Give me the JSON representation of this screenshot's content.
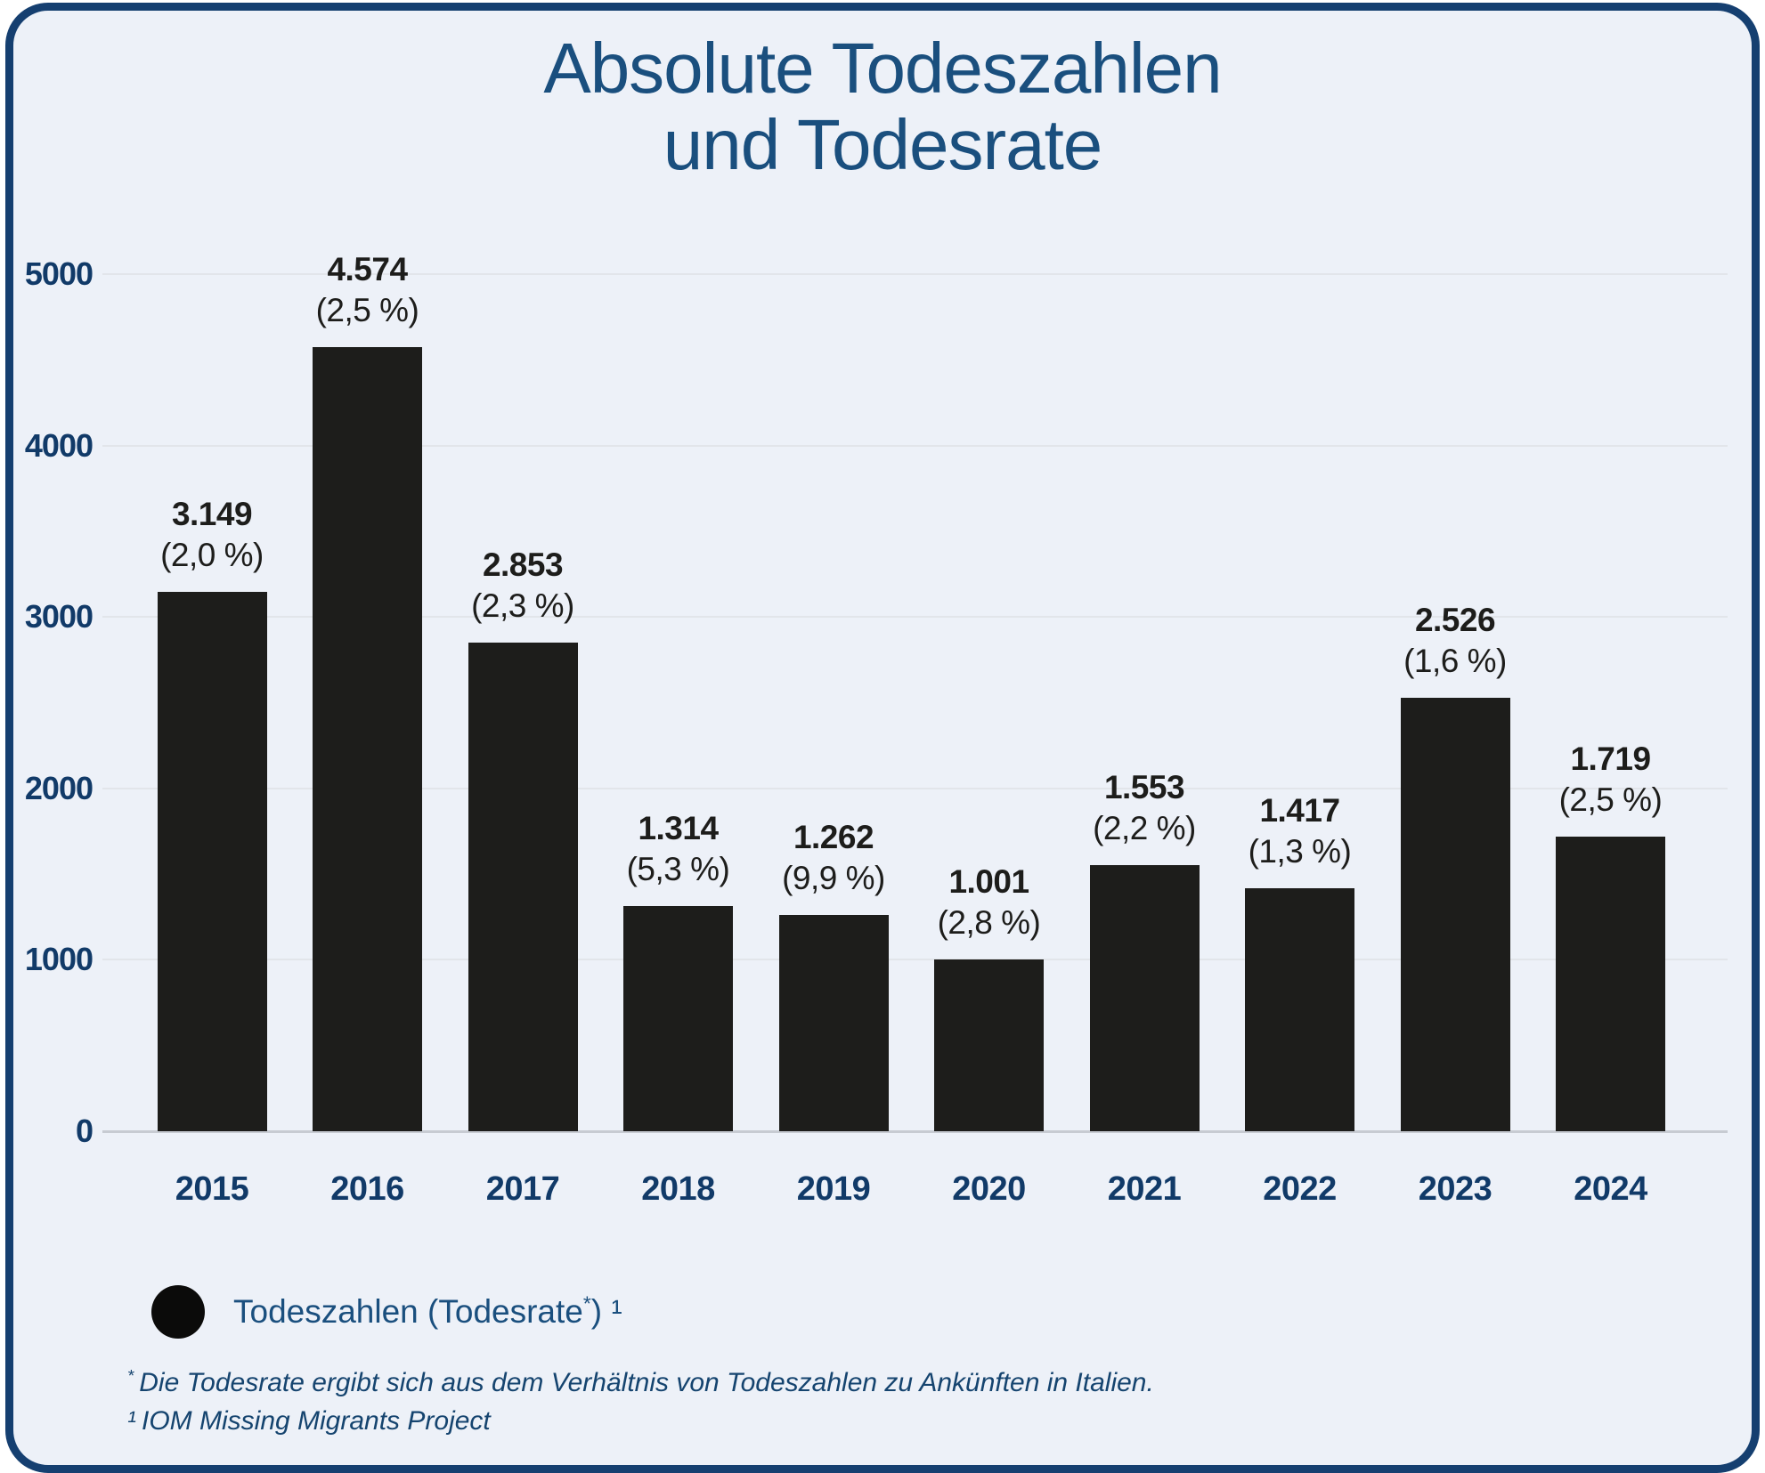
{
  "title": {
    "line1": "Absolute Todeszahlen",
    "line2": "und Todesrate"
  },
  "chart_data": {
    "type": "bar",
    "title": "Absolute Todeszahlen und Todesrate",
    "categories": [
      "2015",
      "2016",
      "2017",
      "2018",
      "2019",
      "2020",
      "2021",
      "2022",
      "2023",
      "2024"
    ],
    "series": [
      {
        "name": "Todeszahlen",
        "values": [
          3149,
          4574,
          2853,
          1314,
          1262,
          1001,
          1553,
          1417,
          2526,
          1719
        ]
      }
    ],
    "value_labels": [
      "3.149",
      "4.574",
      "2.853",
      "1.314",
      "1.262",
      "1.001",
      "1.553",
      "1.417",
      "2.526",
      "1.719"
    ],
    "rate_labels": [
      "(2,0 %)",
      "(2,5 %)",
      "(2,3 %)",
      "(5,3 %)",
      "(9,9 %)",
      "(2,8 %)",
      "(2,2 %)",
      "(1,3 %)",
      "(1,6 %)",
      "(2,5 %)"
    ],
    "rates_percent": [
      2.0,
      2.5,
      2.3,
      5.3,
      9.9,
      2.8,
      2.2,
      1.3,
      1.6,
      2.5
    ],
    "xlabel": "",
    "ylabel": "",
    "ylim": [
      0,
      5000
    ],
    "yticks": [
      0,
      1000,
      2000,
      3000,
      4000,
      5000
    ],
    "grid": "horizontal",
    "legend_position": "bottom-left",
    "bar_color": "#1d1d1b"
  },
  "legend": {
    "label": "Todeszahlen (Todesrate",
    "asterisk": "*",
    "suffix": ")",
    "ref": "¹"
  },
  "footnotes": {
    "0": {
      "marker": "*",
      "text": "Die Todesrate ergibt sich aus dem Verhältnis von Todeszahlen zu Ankünften in Italien."
    },
    "1": {
      "marker": "¹",
      "text": "IOM Missing Migrants Project"
    }
  },
  "colors": {
    "card_background": "#edf1f8",
    "card_border": "#153f70",
    "title_text": "#1a4f7e",
    "axis_text": "#113a68",
    "bar": "#1d1d1b",
    "gridline": "#e2e5ea",
    "footnote_text": "#15446f"
  }
}
